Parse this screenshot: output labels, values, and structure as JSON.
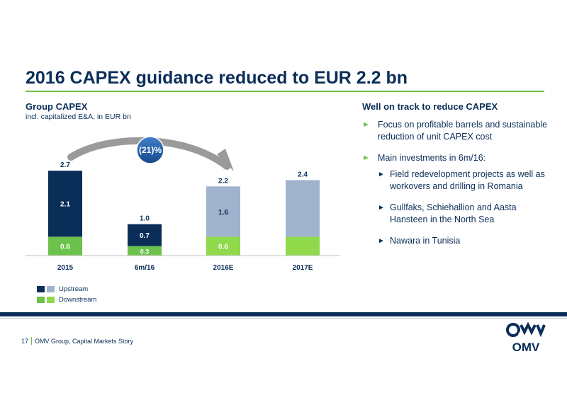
{
  "page": {
    "title": "2016 CAPEX guidance reduced to EUR 2.2 bn",
    "footer_page": "17",
    "footer_text": "OMV Group, Capital Markets Story",
    "logo_text": "OMV"
  },
  "colors": {
    "navy": "#0b2e59",
    "green": "#6cc24a",
    "light_blue": "#9fb3cd",
    "light_green": "#8fd94b"
  },
  "chart_data": {
    "type": "bar",
    "stacked": true,
    "title": "Group CAPEX",
    "subtitle": "incl. capitalized E&A, in EUR bn",
    "categories": [
      "2015",
      "6m/16",
      "2016E",
      "2017E"
    ],
    "series": [
      {
        "name": "Downstream",
        "values": [
          0.6,
          0.3,
          0.6,
          0.6
        ],
        "labels": [
          "0.6",
          "0.3",
          "0.6",
          ""
        ]
      },
      {
        "name": "Upstream",
        "values": [
          2.1,
          0.7,
          1.6,
          1.8
        ],
        "labels": [
          "2.1",
          "0.7",
          "1.6",
          ""
        ]
      }
    ],
    "totals": [
      "2.7",
      "1.0",
      "2.2",
      "2.4"
    ],
    "annotation": "(21)%",
    "ylim": [
      0,
      2.7
    ]
  },
  "legend": {
    "items": [
      {
        "label": "Upstream"
      },
      {
        "label": "Downstream"
      }
    ]
  },
  "right": {
    "title": "Well on track to reduce CAPEX",
    "bullet1": "Focus on profitable barrels and sustainable reduction of unit CAPEX cost",
    "bullet2": "Main investments in 6m/16:",
    "sub1": "Field redevelopment projects as well as workovers and drilling in Romania",
    "sub2": "Gullfaks, Schiehallion and Aasta Hansteen in the North Sea",
    "sub3": "Nawara in Tunisia"
  }
}
